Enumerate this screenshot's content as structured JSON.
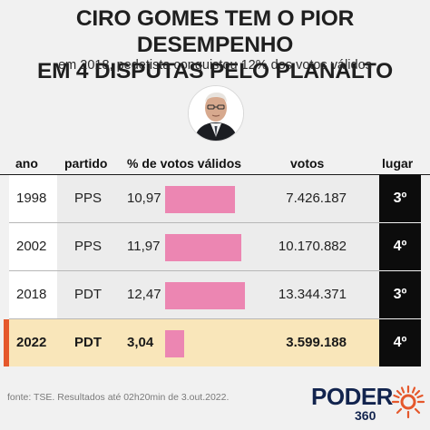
{
  "header": {
    "title_line1": "CIRO GOMES TEM O PIOR DESEMPENHO",
    "title_line2": "EM 4 DISPUTAS PELO PLANALTO",
    "subtitle": "em 2018, pedetista conquistou 12% dos votos válidos"
  },
  "columns": {
    "ano": "ano",
    "partido": "partido",
    "pct": "% de votos válidos",
    "votos": "votos",
    "lugar": "lugar"
  },
  "rows": [
    {
      "ano": "1998",
      "partido": "PPS",
      "pct": "10,97",
      "votos": "7.426.187",
      "lugar": "3º"
    },
    {
      "ano": "2002",
      "partido": "PPS",
      "pct": "11,97",
      "votos": "10.170.882",
      "lugar": "4º"
    },
    {
      "ano": "2018",
      "partido": "PDT",
      "pct": "12,47",
      "votos": "13.344.371",
      "lugar": "3º"
    },
    {
      "ano": "2022",
      "partido": "PDT",
      "pct": "3,04",
      "votos": "3.599.188",
      "lugar": "4º"
    }
  ],
  "footer": {
    "source": "fonte: TSE. Resultados até 02h20min de 3.out.2022.",
    "logo_text": "PODER",
    "logo_number": "360"
  },
  "colors": {
    "bar": "#ec86b2",
    "highlight_row": "#f9e6ba",
    "accent": "#e5582c",
    "place_bg": "#0c0c0c",
    "logo": "#12244e"
  },
  "icons": [
    "candidate-photo",
    "poder360-sun-logo"
  ],
  "chart_data": {
    "type": "bar",
    "categories": [
      "1998",
      "2002",
      "2018",
      "2022"
    ],
    "values": [
      10.97,
      11.97,
      12.47,
      3.04
    ],
    "ylim": [
      0,
      12.47
    ],
    "grid": false,
    "legend": "none"
  }
}
